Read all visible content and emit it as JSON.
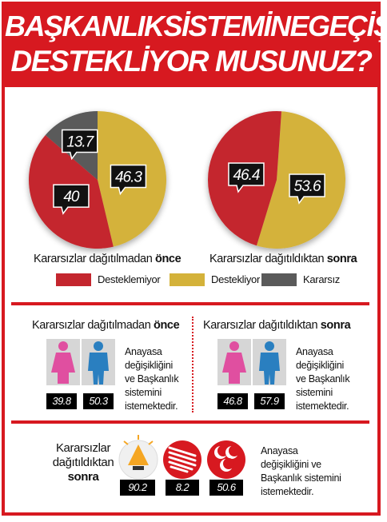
{
  "title": {
    "line1": "BAŞKANLIKSİSTEMİNEGEÇİŞİ",
    "line2": "DESTEKLİYOR MUSUNUZ?"
  },
  "colors": {
    "red": "#c4262e",
    "yellow": "#d4b23a",
    "gray": "#5a5a5a",
    "accent": "#d71920"
  },
  "chart_data": [
    {
      "type": "pie",
      "caption_prefix": "Kararsızlar dağıtılmadan ",
      "caption_bold": "önce",
      "slices": [
        {
          "label": "Destekliyor",
          "value": 46.3,
          "display": "46.3"
        },
        {
          "label": "Desteklemiyor",
          "value": 40,
          "display": "40"
        },
        {
          "label": "Kararsız",
          "value": 13.7,
          "display": "13.7"
        }
      ]
    },
    {
      "type": "pie",
      "caption_prefix": "Kararsızlar dağıtıldıktan ",
      "caption_bold": "sonra",
      "slices": [
        {
          "label": "Destekliyor",
          "value": 53.6,
          "display": "53.6"
        },
        {
          "label": "Desteklemiyor",
          "value": 46.4,
          "display": "46.4"
        }
      ]
    },
    {
      "type": "bar",
      "title_prefix": "Kararsızlar dağıtılmadan ",
      "title_bold": "önce",
      "categories": [
        "Kadın",
        "Erkek"
      ],
      "values": [
        39.8,
        50.3
      ],
      "display": [
        "39.8",
        "50.3"
      ]
    },
    {
      "type": "bar",
      "title_prefix": "Kararsızlar dağıtıldıktan ",
      "title_bold": "sonra",
      "categories": [
        "Kadın",
        "Erkek"
      ],
      "values": [
        46.8,
        57.9
      ],
      "display": [
        "46.8",
        "57.9"
      ]
    },
    {
      "type": "bar",
      "categories": [
        "AK Parti",
        "CHP",
        "MHP"
      ],
      "values": [
        90.2,
        8.2,
        50.6
      ],
      "display": [
        "90.2",
        "8.2",
        "50.6"
      ]
    }
  ],
  "legend": [
    {
      "label": "Desteklemiyor",
      "color": "#c4262e"
    },
    {
      "label": "Destekliyor",
      "color": "#d4b23a"
    },
    {
      "label": "Kararsız",
      "color": "#5a5a5a"
    }
  ],
  "gender_note": {
    "line1": "Anayasa",
    "line2": "değişikliğini",
    "line3": "ve Başkanlık",
    "line4": "sistemini",
    "line5": "istemektedir."
  },
  "party_section": {
    "label_line1": "Kararsızlar",
    "label_line2": "dağıtıldıktan",
    "label_line3": "sonra",
    "note_line1": "Anayasa",
    "note_line2": "değişikliğini ve",
    "note_line3": "Başkanlık sistemini",
    "note_line4": "istemektedir.",
    "icons": [
      "lightbulb-icon",
      "chp-six-arrows-icon",
      "mhp-crescents-icon"
    ]
  }
}
